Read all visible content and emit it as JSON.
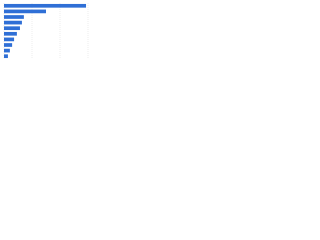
{
  "chart_data": {
    "type": "bar",
    "orientation": "horizontal",
    "categories": [
      null,
      null,
      null,
      null,
      null,
      null,
      null,
      null,
      null,
      null
    ],
    "values": [
      2.93,
      1.5,
      0.71,
      0.64,
      0.57,
      0.46,
      0.36,
      0.29,
      0.21,
      0.14
    ],
    "color": "#2f6fd6",
    "xlim": [
      0,
      3
    ],
    "xticks": [
      0,
      1,
      2,
      3
    ],
    "grid": true
  }
}
